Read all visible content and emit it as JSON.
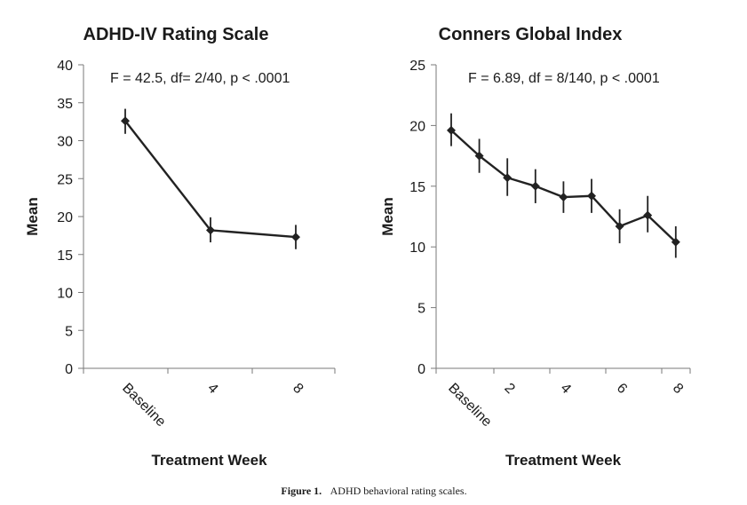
{
  "chart_data": [
    {
      "type": "line",
      "title": "ADHD-IV Rating Scale",
      "xlabel": "Treatment Week",
      "ylabel": "Mean",
      "annotation": "F = 42.5, df= 2/40, p < .0001",
      "categories": [
        "Baseline",
        "4",
        "8"
      ],
      "values": [
        32.6,
        18.2,
        17.3
      ],
      "error_low": [
        30.9,
        16.6,
        15.7
      ],
      "error_high": [
        34.2,
        19.9,
        18.9
      ],
      "yticks": [
        0,
        5,
        10,
        15,
        20,
        25,
        30,
        35,
        40
      ],
      "ylim": [
        0,
        40
      ],
      "grid": false,
      "legend": "none"
    },
    {
      "type": "line",
      "title": "Conners Global Index",
      "xlabel": "Treatment Week",
      "ylabel": "Mean",
      "annotation": "F = 6.89, df = 8/140, p < .0001",
      "x_tick_labels": [
        "Baseline",
        "2",
        "4",
        "6",
        "8"
      ],
      "x_values": [
        0,
        1,
        2,
        3,
        4,
        5,
        6,
        7,
        8
      ],
      "values": [
        19.6,
        17.5,
        15.7,
        15.0,
        14.1,
        14.2,
        11.7,
        12.6,
        10.4
      ],
      "error_low": [
        18.3,
        16.1,
        14.2,
        13.6,
        12.8,
        12.8,
        10.3,
        11.2,
        9.1
      ],
      "error_high": [
        21.0,
        18.9,
        17.3,
        16.4,
        15.4,
        15.6,
        13.1,
        14.2,
        11.7
      ],
      "yticks": [
        0,
        5,
        10,
        15,
        20,
        25
      ],
      "ylim": [
        0,
        25
      ],
      "grid": false,
      "legend": "none"
    }
  ],
  "caption": {
    "label": "Figure 1.",
    "text": "ADHD behavioral rating scales."
  }
}
